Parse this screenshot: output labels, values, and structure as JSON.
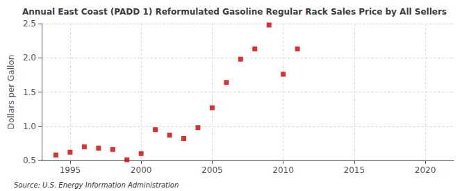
{
  "chart_data": {
    "type": "scatter",
    "title": "Annual East Coast (PADD 1) Reformulated Gasoline Regular Rack Sales Price by All Sellers",
    "ylabel": "Dollars per Gallon",
    "annotations": [
      "Source: U.S. Energy Information Administration"
    ],
    "x": [
      1994,
      1995,
      1996,
      1997,
      1998,
      1999,
      2000,
      2001,
      2002,
      2003,
      2004,
      2005,
      2006,
      2007,
      2008,
      2009,
      2010,
      2011
    ],
    "values": [
      0.58,
      0.62,
      0.7,
      0.68,
      0.66,
      0.51,
      0.6,
      0.95,
      0.87,
      0.82,
      0.98,
      1.27,
      1.64,
      1.98,
      2.13,
      2.48,
      1.76,
      2.13
    ],
    "xlim": [
      1993,
      2022
    ],
    "ylim": [
      0.5,
      2.5
    ],
    "xticks": [
      1995,
      2000,
      2005,
      2010,
      2015,
      2020
    ],
    "yticks": [
      {
        "value": 0.5,
        "label": "0.5"
      },
      {
        "value": 1.0,
        "label": "1.0"
      },
      {
        "value": 1.5,
        "label": "1.5"
      },
      {
        "value": 2.0,
        "label": "2.0"
      },
      {
        "value": 2.5,
        "label": "2.5"
      }
    ],
    "color": "#cc0000",
    "marker": "square",
    "grid": true
  }
}
